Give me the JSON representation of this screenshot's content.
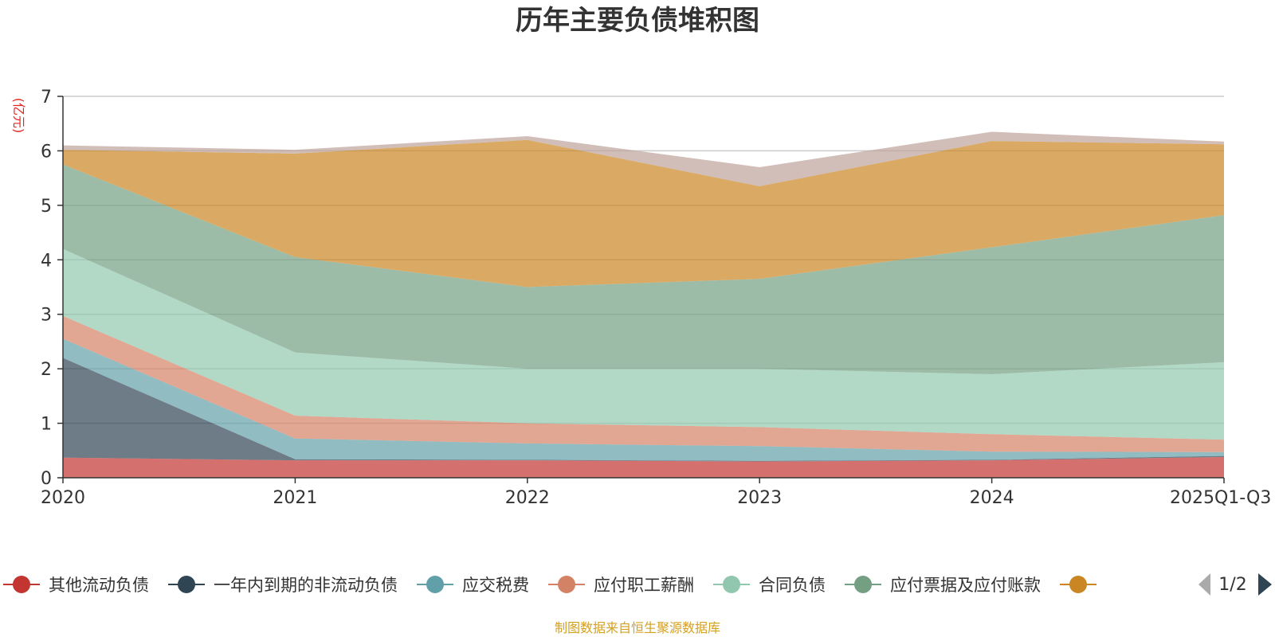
{
  "chart_data": {
    "type": "area",
    "stacked": true,
    "title": "历年主要负债堆积图",
    "ylabel": "(亿元)",
    "xlabel": "",
    "categories": [
      "2020",
      "2021",
      "2022",
      "2023",
      "2024",
      "2025Q1-Q3"
    ],
    "ylim": [
      0,
      7
    ],
    "yticks": [
      0,
      1,
      2,
      3,
      4,
      5,
      6,
      7
    ],
    "grid": true,
    "legend_position": "bottom",
    "series": [
      {
        "name": "其他流动负债",
        "color": "#c23531",
        "values": [
          0.37,
          0.32,
          0.32,
          0.3,
          0.32,
          0.38
        ]
      },
      {
        "name": "一年内到期的非流动负债",
        "color": "#2f4554",
        "values": [
          1.83,
          0.02,
          0.01,
          0.01,
          0.01,
          0.02
        ]
      },
      {
        "name": "应交税费",
        "color": "#61a0a8",
        "values": [
          0.35,
          0.38,
          0.3,
          0.27,
          0.15,
          0.07
        ]
      },
      {
        "name": "应付职工薪酬",
        "color": "#d48265",
        "values": [
          0.42,
          0.42,
          0.37,
          0.35,
          0.32,
          0.23
        ]
      },
      {
        "name": "合同负债",
        "color": "#91c7ae",
        "values": [
          1.23,
          1.16,
          1.0,
          1.07,
          1.1,
          1.42
        ]
      },
      {
        "name": "应付票据及应付账款",
        "color": "#749f83",
        "values": [
          1.55,
          1.75,
          1.5,
          1.65,
          2.33,
          2.7
        ]
      },
      {
        "name": "",
        "color": "#ca8622",
        "values": [
          0.27,
          1.9,
          2.7,
          1.7,
          1.95,
          1.3
        ]
      },
      {
        "name": "",
        "color": "#bda29a",
        "values": [
          0.08,
          0.07,
          0.07,
          0.35,
          0.17,
          0.05
        ]
      }
    ],
    "legend_visible_count": 7,
    "pager": "1/2",
    "source": "制图数据来自恒生聚源数据库"
  }
}
